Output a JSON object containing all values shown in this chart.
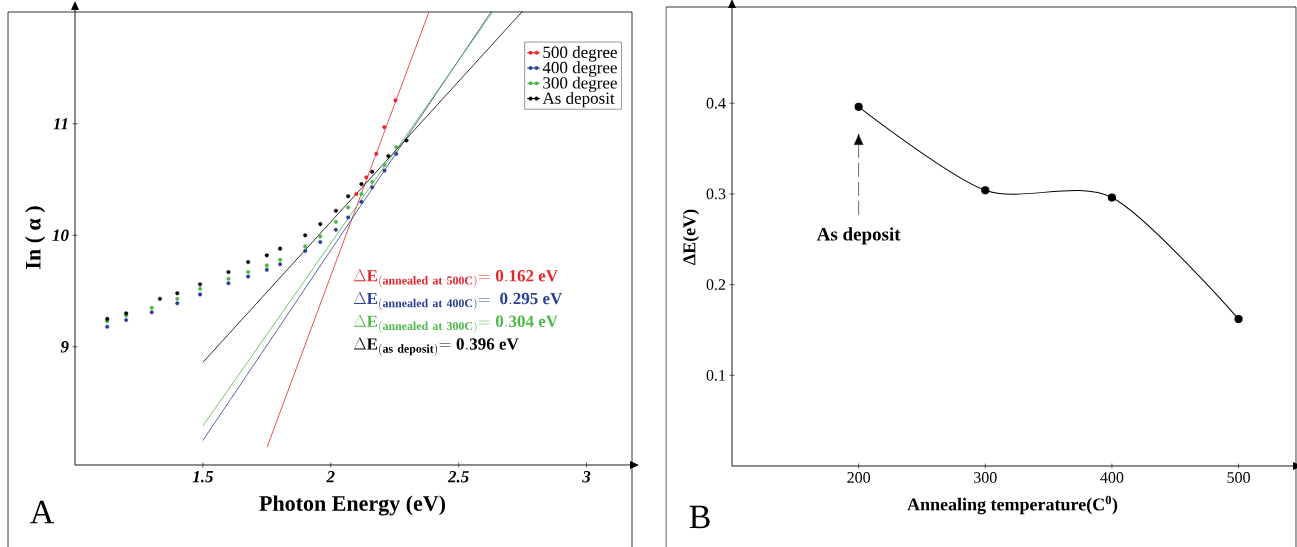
{
  "chart_data": [
    {
      "type": "scatter",
      "xlabel": "Photon Energy (eV)",
      "ylabel": "In ( α )",
      "xlim": [
        1,
        3.17
      ],
      "ylim": [
        7.94,
        12.02
      ],
      "xticks": [
        1.5,
        2,
        2.5,
        3
      ],
      "yticks": [
        9,
        10,
        11
      ],
      "legend": "top right",
      "series": [
        {
          "name": "500 degree",
          "color": "#e8242a",
          "marker": "circle",
          "x": [
            2.1,
            2.139,
            2.178,
            2.209,
            2.253
          ],
          "values": [
            10.37,
            10.52,
            10.73,
            10.97,
            11.21
          ]
        },
        {
          "name": "400 degree",
          "color": "#2b3f99",
          "marker": "circle",
          "x": [
            1.126,
            1.2,
            1.3,
            1.4,
            1.489,
            1.6,
            1.677,
            1.75,
            1.802,
            1.9,
            1.959,
            2.02,
            2.068,
            2.12,
            2.162,
            2.21,
            2.256
          ],
          "values": [
            9.18,
            9.24,
            9.31,
            9.39,
            9.47,
            9.57,
            9.63,
            9.69,
            9.74,
            9.86,
            9.94,
            10.05,
            10.16,
            10.3,
            10.43,
            10.58,
            10.73
          ]
        },
        {
          "name": "300 degree",
          "color": "#4db848",
          "marker": "circle",
          "x": [
            1.126,
            1.2,
            1.3,
            1.4,
            1.489,
            1.6,
            1.677,
            1.75,
            1.802,
            1.9,
            1.959,
            2.02,
            2.068,
            2.12,
            2.162,
            2.21,
            2.256
          ],
          "values": [
            9.23,
            9.28,
            9.35,
            9.43,
            9.52,
            9.61,
            9.67,
            9.73,
            9.78,
            9.9,
            9.99,
            10.12,
            10.25,
            10.37,
            10.48,
            10.63,
            10.79
          ]
        },
        {
          "name": "As deposit",
          "color": "#000000",
          "marker": "circle",
          "x": [
            1.126,
            1.2,
            1.332,
            1.4,
            1.489,
            1.6,
            1.677,
            1.75,
            1.802,
            1.9,
            1.959,
            2.02,
            2.068,
            2.12,
            2.162,
            2.225,
            2.296
          ],
          "values": [
            9.25,
            9.3,
            9.43,
            9.48,
            9.56,
            9.67,
            9.76,
            9.82,
            9.88,
            10.0,
            10.1,
            10.22,
            10.35,
            10.46,
            10.57,
            10.71,
            10.85
          ]
        },
        {
          "type": "line",
          "color": "#e8242a",
          "marker": "none",
          "x": [
            1.751,
            2.385
          ],
          "values": [
            8.1,
            12.01
          ]
        },
        {
          "type": "line",
          "color": "#2b3f99",
          "marker": "none",
          "x": [
            1.5,
            2.629
          ],
          "values": [
            8.16,
            12.01
          ]
        },
        {
          "type": "line",
          "color": "#4db848",
          "marker": "none",
          "x": [
            1.5,
            2.635
          ],
          "values": [
            8.29,
            12.01
          ]
        },
        {
          "type": "line",
          "color": "#000000",
          "marker": "none",
          "x": [
            1.5,
            2.75
          ],
          "values": [
            8.86,
            12.01
          ]
        }
      ],
      "annotations": [
        "\\Delta\\mathbf{E}_{\\mathbf{(annealed\\ at\\ 500C)}}\\mathbf{=0.162\\ eV}",
        "\\Delta\\mathbf{E}_{\\mathbf{(annealed\\ at\\ 400C)}}\\mathbf{=\\ 0.295\\ eV}",
        "\\Delta\\mathbf{E}_{\\mathbf{(annealed\\ at\\ 300C)}}\\mathbf{=0.304\\ eV}",
        "\\Delta\\mathbf{E}_{\\mathbf{(as\\ deposit)}}\\mathbf{=0.396\\ eV}",
        "A"
      ]
    },
    {
      "type": "line",
      "xlabel": "Annealing temperature(C$^{0}$)",
      "ylabel": "ΔE(eV)",
      "xlim": [
        100,
        543
      ],
      "ylim": [
        0,
        0.505
      ],
      "xticks": [
        200,
        300,
        400,
        500
      ],
      "yticks": [
        0.1,
        0.2,
        0.3,
        0.4
      ],
      "marker": "circle",
      "series": [
        {
          "color": "#000000",
          "x": [
            200,
            300,
            400,
            500
          ],
          "values": [
            0.396,
            0.304,
            0.296,
            0.162
          ]
        }
      ],
      "annotations": [
        "As deposit",
        "B"
      ]
    }
  ]
}
